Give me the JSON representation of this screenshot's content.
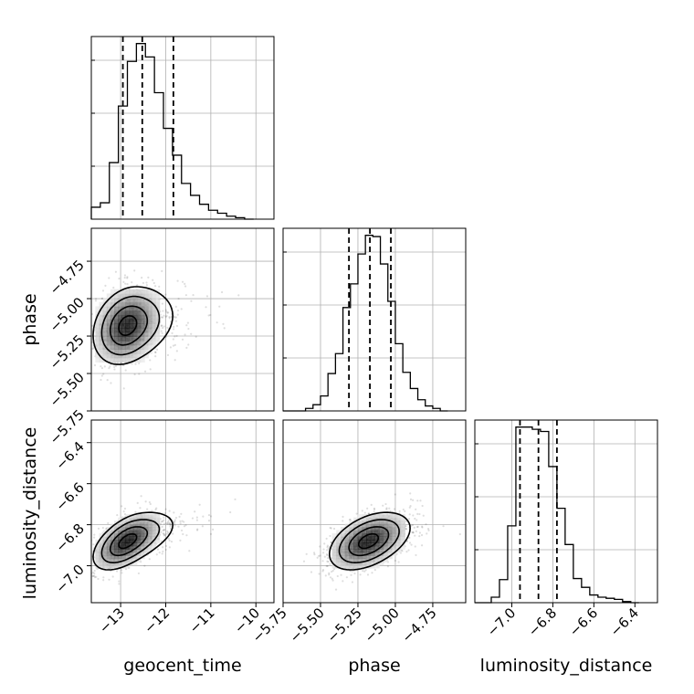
{
  "chart_data": {
    "type": "corner",
    "parameters": [
      {
        "name": "geocent_time",
        "ticks": [
          "−13",
          "−12",
          "−11",
          "−10"
        ],
        "tick_values": [
          -13,
          -12,
          -11,
          -10
        ],
        "range": [
          -13.65,
          -9.6
        ]
      },
      {
        "name": "phase",
        "ticks": [
          "−5.75",
          "−5.50",
          "−5.25",
          "−5.00",
          "−4.75"
        ],
        "tick_values": [
          -5.75,
          -5.5,
          -5.25,
          -5.0,
          -4.75
        ],
        "range": [
          -5.75,
          -4.53
        ]
      },
      {
        "name": "luminosity_distance",
        "ticks": [
          "−7.0",
          "−6.8",
          "−6.6",
          "−6.4"
        ],
        "tick_values": [
          -7.0,
          -6.8,
          -6.6,
          -6.4
        ],
        "range": [
          -7.18,
          -6.29
        ]
      }
    ],
    "row_ticks": [
      {
        "ticks": [],
        "tick_values": [],
        "range": [
          0,
          1
        ]
      },
      {
        "ticks": [
          "−4.75",
          "−5.00",
          "−5.25",
          "−5.50",
          "−5.75"
        ],
        "tick_values": [
          -4.75,
          -5.0,
          -5.25,
          -5.5,
          -5.75
        ],
        "range": [
          -5.75,
          -4.53
        ]
      },
      {
        "ticks": [
          "−6.4",
          "−6.6",
          "−6.8",
          "−7.0"
        ],
        "tick_values": [
          -6.4,
          -6.6,
          -6.8,
          -7.0
        ],
        "range": [
          -7.18,
          -6.29
        ]
      }
    ],
    "histograms": [
      {
        "param": "geocent_time",
        "bin_edges": [
          -13.65,
          -13.45,
          -13.25,
          -13.05,
          -12.85,
          -12.65,
          -12.45,
          -12.25,
          -12.05,
          -11.85,
          -11.65,
          -11.45,
          -11.25,
          -11.05,
          -10.85,
          -10.65,
          -10.45,
          -10.25,
          -10.05
        ],
        "counts": [
          0.08,
          0.11,
          0.38,
          0.76,
          1.06,
          1.18,
          1.09,
          0.85,
          0.61,
          0.43,
          0.24,
          0.16,
          0.1,
          0.06,
          0.04,
          0.02,
          0.01,
          0.0
        ],
        "quantiles": [
          -12.95,
          -12.52,
          -11.83
        ]
      },
      {
        "param": "phase",
        "bin_edges": [
          -5.75,
          -5.7,
          -5.65,
          -5.6,
          -5.55,
          -5.5,
          -5.45,
          -5.4,
          -5.35,
          -5.3,
          -5.25,
          -5.2,
          -5.15,
          -5.1,
          -5.05,
          -5.0,
          -4.95,
          -4.9,
          -4.85,
          -4.8,
          -4.75,
          -4.7,
          -4.65
        ],
        "counts": [
          0.0,
          0.0,
          0.0,
          0.02,
          0.05,
          0.12,
          0.3,
          0.46,
          0.83,
          1.02,
          1.26,
          1.41,
          1.4,
          1.18,
          0.88,
          0.54,
          0.31,
          0.18,
          0.09,
          0.04,
          0.02,
          0.0
        ],
        "quantiles": [
          -5.31,
          -5.17,
          -5.03
        ]
      },
      {
        "param": "luminosity_distance",
        "bin_edges": [
          -7.18,
          -7.14,
          -7.1,
          -7.06,
          -7.02,
          -6.98,
          -6.94,
          -6.9,
          -6.86,
          -6.82,
          -6.78,
          -6.74,
          -6.7,
          -6.66,
          -6.62,
          -6.58,
          -6.54,
          -6.5,
          -6.46,
          -6.42,
          -6.38
        ],
        "counts": [
          0.0,
          0.0,
          0.05,
          0.21,
          0.7,
          1.6,
          1.6,
          1.58,
          1.56,
          1.24,
          0.86,
          0.53,
          0.22,
          0.14,
          0.07,
          0.05,
          0.04,
          0.03,
          0.01,
          0.0
        ],
        "quantiles": [
          -6.96,
          -6.87,
          -6.78
        ]
      }
    ],
    "joint_2d": [
      {
        "x": "geocent_time",
        "y": "phase",
        "peak": [
          -12.85,
          -5.18
        ],
        "std": [
          0.38,
          0.13
        ],
        "correlation": 0.25,
        "skew_x": 0.9
      },
      {
        "x": "geocent_time",
        "y": "luminosity_distance",
        "peak": [
          -12.85,
          -6.88
        ],
        "std": [
          0.38,
          0.07
        ],
        "correlation": 0.55,
        "skew_x": 0.9
      },
      {
        "x": "phase",
        "y": "luminosity_distance",
        "peak": [
          -5.18,
          -6.88
        ],
        "std": [
          0.13,
          0.07
        ],
        "correlation": 0.45,
        "skew_x": 0.2
      }
    ],
    "contour_levels": [
      "0.5σ",
      "1σ",
      "1.5σ",
      "2σ"
    ],
    "quantiles": [
      0.16,
      0.5,
      0.84
    ],
    "grid": true,
    "legend": "none"
  }
}
